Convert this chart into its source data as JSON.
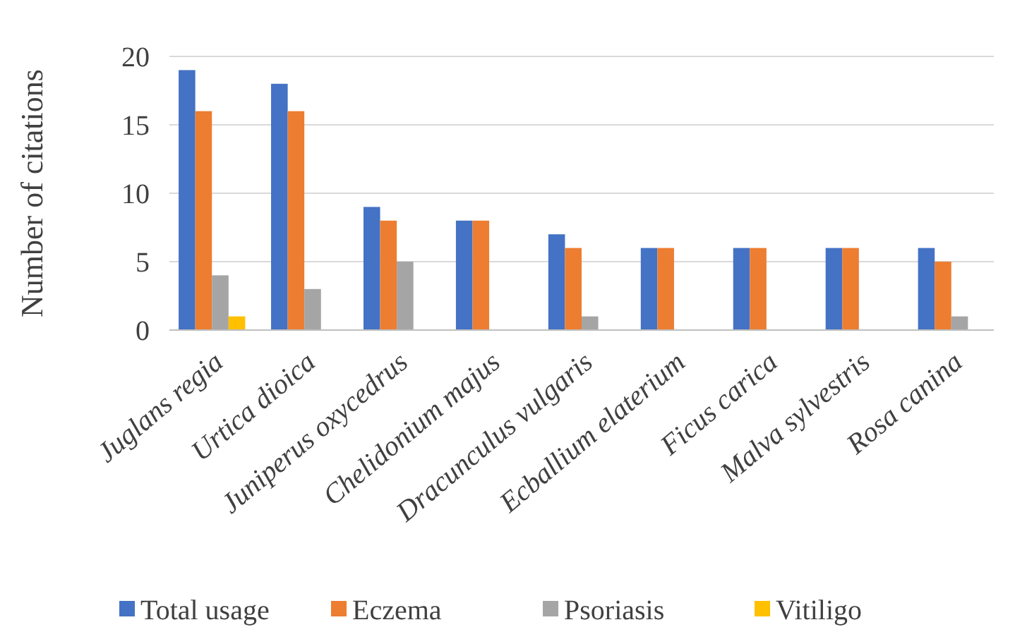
{
  "chart_data": {
    "type": "bar",
    "ylabel": "Number of citations",
    "categories": [
      "Juglans regia",
      "Urtica dioica",
      "Juniperus oxycedrus",
      "Chelidonium majus",
      "Dracunculus vulgaris",
      "Ecballium elaterium",
      "Ficus carica",
      "Malva sylvestris",
      "Rosa canina"
    ],
    "series": [
      {
        "name": "Total usage",
        "color": "#4472c4",
        "values": [
          19,
          18,
          9,
          8,
          7,
          6,
          6,
          6,
          6
        ]
      },
      {
        "name": "Eczema",
        "color": "#ed7d31",
        "values": [
          16,
          16,
          8,
          8,
          6,
          6,
          6,
          6,
          5
        ]
      },
      {
        "name": "Psoriasis",
        "color": "#a5a5a5",
        "values": [
          4,
          3,
          5,
          0,
          1,
          0,
          0,
          0,
          1
        ]
      },
      {
        "name": "Vitiligo",
        "color": "#ffc000",
        "values": [
          1,
          0,
          0,
          0,
          0,
          0,
          0,
          0,
          0
        ]
      }
    ],
    "ylim": [
      0,
      20
    ],
    "yticks": [
      0,
      5,
      10,
      15,
      20
    ],
    "grid": "y",
    "legend": "bottom"
  }
}
